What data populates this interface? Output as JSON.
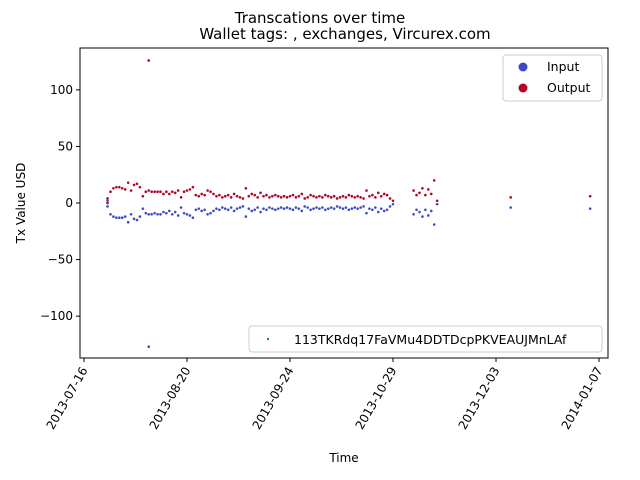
{
  "chart_data": {
    "type": "scatter",
    "title": "Transcations over time",
    "subtitle": "Wallet tags: , exchanges, Vircurex.com",
    "xlabel": "Time",
    "ylabel": "Tx Value USD",
    "x_type": "date",
    "xlim": [
      "2013-07-16",
      "2014-01-07"
    ],
    "ylim": [
      -137,
      137
    ],
    "x_ticks": [
      "2013-07-16",
      "2013-08-20",
      "2013-09-24",
      "2013-10-29",
      "2013-12-03",
      "2014-01-07"
    ],
    "y_ticks": [
      -100,
      -50,
      0,
      50,
      100
    ],
    "grid": false,
    "legend_type": {
      "placement": "upper-right",
      "entries": [
        "Input",
        "Output"
      ]
    },
    "legend_wallet": {
      "placement": "lower-right",
      "entries": [
        "113TKRdq17FaVMu4DDTDcpPKVEAUJMnLAf"
      ]
    },
    "colors": {
      "Input": "#3b4cc0",
      "Output": "#b40426",
      "wallet": "#1f77b4"
    },
    "series": [
      {
        "name": "Input",
        "points": [
          [
            "2013-07-24",
            2
          ],
          [
            "2013-07-24",
            -3
          ],
          [
            "2013-07-25",
            -10
          ],
          [
            "2013-07-26",
            -12
          ],
          [
            "2013-07-27",
            -13
          ],
          [
            "2013-07-28",
            -13
          ],
          [
            "2013-07-29",
            -13
          ],
          [
            "2013-07-30",
            -12
          ],
          [
            "2013-07-31",
            -17
          ],
          [
            "2013-08-01",
            -10
          ],
          [
            "2013-08-02",
            -14
          ],
          [
            "2013-08-03",
            -15
          ],
          [
            "2013-08-04",
            -12
          ],
          [
            "2013-08-05",
            -5
          ],
          [
            "2013-08-06",
            -9
          ],
          [
            "2013-08-07",
            -127
          ],
          [
            "2013-08-07",
            -10
          ],
          [
            "2013-08-08",
            -10
          ],
          [
            "2013-08-09",
            -9
          ],
          [
            "2013-08-10",
            -10
          ],
          [
            "2013-08-11",
            -10
          ],
          [
            "2013-08-12",
            -8
          ],
          [
            "2013-08-13",
            -9
          ],
          [
            "2013-08-14",
            -7
          ],
          [
            "2013-08-15",
            -10
          ],
          [
            "2013-08-16",
            -8
          ],
          [
            "2013-08-17",
            -11
          ],
          [
            "2013-08-18",
            -4
          ],
          [
            "2013-08-19",
            -9
          ],
          [
            "2013-08-20",
            -10
          ],
          [
            "2013-08-21",
            -11
          ],
          [
            "2013-08-22",
            -13
          ],
          [
            "2013-08-23",
            -6
          ],
          [
            "2013-08-24",
            -5
          ],
          [
            "2013-08-25",
            -7
          ],
          [
            "2013-08-26",
            -6
          ],
          [
            "2013-08-27",
            -10
          ],
          [
            "2013-08-28",
            -9
          ],
          [
            "2013-08-29",
            -7
          ],
          [
            "2013-08-30",
            -5
          ],
          [
            "2013-08-31",
            -6
          ],
          [
            "2013-09-01",
            -4
          ],
          [
            "2013-09-02",
            -5
          ],
          [
            "2013-09-03",
            -6
          ],
          [
            "2013-09-04",
            -4
          ],
          [
            "2013-09-05",
            -7
          ],
          [
            "2013-09-06",
            -5
          ],
          [
            "2013-09-07",
            -4
          ],
          [
            "2013-09-08",
            -3
          ],
          [
            "2013-09-09",
            -12
          ],
          [
            "2013-09-10",
            -5
          ],
          [
            "2013-09-11",
            -7
          ],
          [
            "2013-09-12",
            -6
          ],
          [
            "2013-09-13",
            -4
          ],
          [
            "2013-09-14",
            -8
          ],
          [
            "2013-09-15",
            -5
          ],
          [
            "2013-09-16",
            -6
          ],
          [
            "2013-09-17",
            -4
          ],
          [
            "2013-09-18",
            -5
          ],
          [
            "2013-09-19",
            -6
          ],
          [
            "2013-09-20",
            -5
          ],
          [
            "2013-09-21",
            -4
          ],
          [
            "2013-09-22",
            -5
          ],
          [
            "2013-09-23",
            -4
          ],
          [
            "2013-09-24",
            -5
          ],
          [
            "2013-09-25",
            -6
          ],
          [
            "2013-09-26",
            -4
          ],
          [
            "2013-09-27",
            -5
          ],
          [
            "2013-09-28",
            -7
          ],
          [
            "2013-09-29",
            -3
          ],
          [
            "2013-09-30",
            -4
          ],
          [
            "2013-10-01",
            -6
          ],
          [
            "2013-10-02",
            -5
          ],
          [
            "2013-10-03",
            -4
          ],
          [
            "2013-10-04",
            -5
          ],
          [
            "2013-10-05",
            -4
          ],
          [
            "2013-10-06",
            -6
          ],
          [
            "2013-10-07",
            -5
          ],
          [
            "2013-10-08",
            -4
          ],
          [
            "2013-10-09",
            -5
          ],
          [
            "2013-10-10",
            -3
          ],
          [
            "2013-10-11",
            -4
          ],
          [
            "2013-10-12",
            -5
          ],
          [
            "2013-10-13",
            -4
          ],
          [
            "2013-10-14",
            -6
          ],
          [
            "2013-10-15",
            -5
          ],
          [
            "2013-10-16",
            -4
          ],
          [
            "2013-10-17",
            -5
          ],
          [
            "2013-10-18",
            -4
          ],
          [
            "2013-10-19",
            -3
          ],
          [
            "2013-10-20",
            -9
          ],
          [
            "2013-10-21",
            -5
          ],
          [
            "2013-10-22",
            -6
          ],
          [
            "2013-10-23",
            -4
          ],
          [
            "2013-10-24",
            -8
          ],
          [
            "2013-10-25",
            -5
          ],
          [
            "2013-10-26",
            -7
          ],
          [
            "2013-10-27",
            -6
          ],
          [
            "2013-10-28",
            -3
          ],
          [
            "2013-10-29",
            -1
          ],
          [
            "2013-11-05",
            -10
          ],
          [
            "2013-11-06",
            -6
          ],
          [
            "2013-11-07",
            -8
          ],
          [
            "2013-11-08",
            -12
          ],
          [
            "2013-11-09",
            -6
          ],
          [
            "2013-11-10",
            -11
          ],
          [
            "2013-11-11",
            -7
          ],
          [
            "2013-11-12",
            -19
          ],
          [
            "2013-11-13",
            -1
          ],
          [
            "2013-12-08",
            -4
          ],
          [
            "2014-01-04",
            -5
          ]
        ]
      },
      {
        "name": "Output",
        "points": [
          [
            "2013-07-24",
            0
          ],
          [
            "2013-07-24",
            4
          ],
          [
            "2013-07-25",
            10
          ],
          [
            "2013-07-26",
            13
          ],
          [
            "2013-07-27",
            14
          ],
          [
            "2013-07-28",
            14
          ],
          [
            "2013-07-29",
            13
          ],
          [
            "2013-07-30",
            12
          ],
          [
            "2013-07-31",
            18
          ],
          [
            "2013-08-01",
            11
          ],
          [
            "2013-08-02",
            16
          ],
          [
            "2013-08-03",
            17
          ],
          [
            "2013-08-04",
            14
          ],
          [
            "2013-08-05",
            6
          ],
          [
            "2013-08-06",
            10
          ],
          [
            "2013-08-07",
            126
          ],
          [
            "2013-08-07",
            11
          ],
          [
            "2013-08-08",
            10
          ],
          [
            "2013-08-09",
            10
          ],
          [
            "2013-08-10",
            10
          ],
          [
            "2013-08-11",
            10
          ],
          [
            "2013-08-12",
            8
          ],
          [
            "2013-08-13",
            10
          ],
          [
            "2013-08-14",
            8
          ],
          [
            "2013-08-15",
            10
          ],
          [
            "2013-08-16",
            9
          ],
          [
            "2013-08-17",
            11
          ],
          [
            "2013-08-18",
            5
          ],
          [
            "2013-08-19",
            10
          ],
          [
            "2013-08-20",
            11
          ],
          [
            "2013-08-21",
            12
          ],
          [
            "2013-08-22",
            14
          ],
          [
            "2013-08-23",
            7
          ],
          [
            "2013-08-24",
            6
          ],
          [
            "2013-08-25",
            8
          ],
          [
            "2013-08-26",
            7
          ],
          [
            "2013-08-27",
            11
          ],
          [
            "2013-08-28",
            10
          ],
          [
            "2013-08-29",
            8
          ],
          [
            "2013-08-30",
            6
          ],
          [
            "2013-08-31",
            7
          ],
          [
            "2013-09-01",
            5
          ],
          [
            "2013-09-02",
            6
          ],
          [
            "2013-09-03",
            7
          ],
          [
            "2013-09-04",
            5
          ],
          [
            "2013-09-05",
            8
          ],
          [
            "2013-09-06",
            6
          ],
          [
            "2013-09-07",
            5
          ],
          [
            "2013-09-08",
            4
          ],
          [
            "2013-09-09",
            13
          ],
          [
            "2013-09-10",
            6
          ],
          [
            "2013-09-11",
            8
          ],
          [
            "2013-09-12",
            7
          ],
          [
            "2013-09-13",
            5
          ],
          [
            "2013-09-14",
            9
          ],
          [
            "2013-09-15",
            6
          ],
          [
            "2013-09-16",
            7
          ],
          [
            "2013-09-17",
            5
          ],
          [
            "2013-09-18",
            6
          ],
          [
            "2013-09-19",
            7
          ],
          [
            "2013-09-20",
            6
          ],
          [
            "2013-09-21",
            5
          ],
          [
            "2013-09-22",
            6
          ],
          [
            "2013-09-23",
            5
          ],
          [
            "2013-09-24",
            6
          ],
          [
            "2013-09-25",
            7
          ],
          [
            "2013-09-26",
            5
          ],
          [
            "2013-09-27",
            6
          ],
          [
            "2013-09-28",
            8
          ],
          [
            "2013-09-29",
            4
          ],
          [
            "2013-09-30",
            5
          ],
          [
            "2013-10-01",
            7
          ],
          [
            "2013-10-02",
            6
          ],
          [
            "2013-10-03",
            5
          ],
          [
            "2013-10-04",
            6
          ],
          [
            "2013-10-05",
            5
          ],
          [
            "2013-10-06",
            7
          ],
          [
            "2013-10-07",
            6
          ],
          [
            "2013-10-08",
            5
          ],
          [
            "2013-10-09",
            6
          ],
          [
            "2013-10-10",
            4
          ],
          [
            "2013-10-11",
            5
          ],
          [
            "2013-10-12",
            6
          ],
          [
            "2013-10-13",
            5
          ],
          [
            "2013-10-14",
            7
          ],
          [
            "2013-10-15",
            6
          ],
          [
            "2013-10-16",
            5
          ],
          [
            "2013-10-17",
            6
          ],
          [
            "2013-10-18",
            5
          ],
          [
            "2013-10-19",
            4
          ],
          [
            "2013-10-20",
            11
          ],
          [
            "2013-10-21",
            6
          ],
          [
            "2013-10-22",
            7
          ],
          [
            "2013-10-23",
            5
          ],
          [
            "2013-10-24",
            9
          ],
          [
            "2013-10-25",
            6
          ],
          [
            "2013-10-26",
            8
          ],
          [
            "2013-10-27",
            7
          ],
          [
            "2013-10-28",
            4
          ],
          [
            "2013-10-29",
            2
          ],
          [
            "2013-11-05",
            11
          ],
          [
            "2013-11-06",
            7
          ],
          [
            "2013-11-07",
            9
          ],
          [
            "2013-11-08",
            13
          ],
          [
            "2013-11-09",
            7
          ],
          [
            "2013-11-10",
            12
          ],
          [
            "2013-11-11",
            8
          ],
          [
            "2013-11-12",
            20
          ],
          [
            "2013-11-13",
            2
          ],
          [
            "2013-12-08",
            5
          ],
          [
            "2014-01-04",
            6
          ]
        ]
      }
    ]
  }
}
